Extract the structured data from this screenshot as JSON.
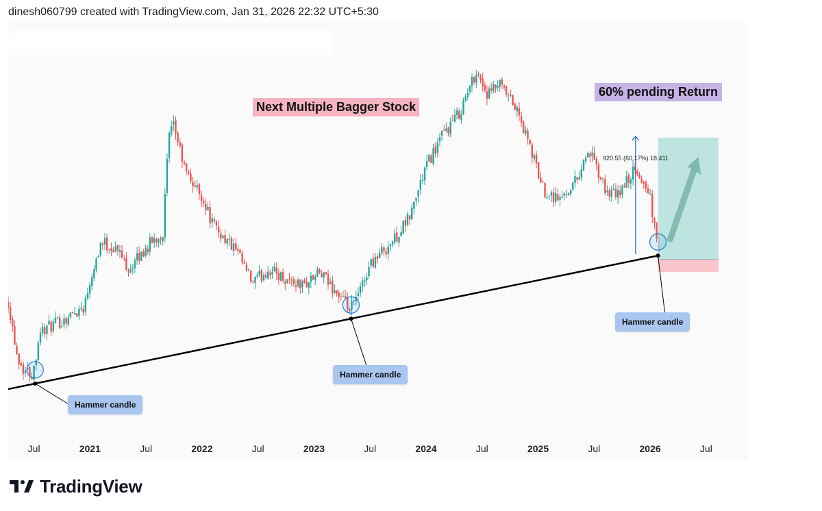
{
  "header": {
    "text": "dinesh060799 created with TradingView.com, Jan 31, 2026 22:32 UTC+5:30"
  },
  "annotations": {
    "title": "Next Multiple Bagger Stock",
    "return_label": "60% pending Return",
    "measure": "920.55 (60.17%) 18,411",
    "hammer_labels": [
      "Hammer candle",
      "Hammer candle",
      "Hammer candle"
    ]
  },
  "footer": {
    "brand": "TradingView"
  },
  "colors": {
    "up": "#26a69a",
    "down": "#ef5350",
    "target_zone": "#b2dfdb",
    "stop_zone": "#f8c0c6",
    "trendline": "#000000",
    "arrow": "#1e64c8"
  },
  "chart_data": {
    "type": "candlestick",
    "title": "",
    "x_axis_labels": [
      "Jul",
      "2021",
      "Jul",
      "2022",
      "Jul",
      "2023",
      "Jul",
      "2024",
      "Jul",
      "2025",
      "Jul",
      "2026",
      "Jul"
    ],
    "x_axis_bold": [
      false,
      true,
      false,
      true,
      false,
      true,
      false,
      true,
      false,
      true,
      false,
      true,
      false
    ],
    "x_range": [
      2020.27,
      2026.99
    ],
    "y_scale": "log",
    "y_price_range_approx": [
      420,
      2750
    ],
    "price_path_keypoints": [
      [
        2020.27,
        800
      ],
      [
        2020.35,
        600
      ],
      [
        2020.4,
        560
      ],
      [
        2020.49,
        540
      ],
      [
        2020.55,
        680
      ],
      [
        2020.75,
        720
      ],
      [
        2020.95,
        780
      ],
      [
        2021.0,
        900
      ],
      [
        2021.1,
        1100
      ],
      [
        2021.25,
        1050
      ],
      [
        2021.35,
        950
      ],
      [
        2021.55,
        1100
      ],
      [
        2021.65,
        1150
      ],
      [
        2021.7,
        1900
      ],
      [
        2021.75,
        2050
      ],
      [
        2021.85,
        1600
      ],
      [
        2022.0,
        1400
      ],
      [
        2022.1,
        1200
      ],
      [
        2022.3,
        1050
      ],
      [
        2022.45,
        880
      ],
      [
        2022.6,
        950
      ],
      [
        2022.75,
        900
      ],
      [
        2022.9,
        870
      ],
      [
        2023.05,
        930
      ],
      [
        2023.2,
        840
      ],
      [
        2023.32,
        760
      ],
      [
        2023.4,
        830
      ],
      [
        2023.5,
        980
      ],
      [
        2023.7,
        1100
      ],
      [
        2023.85,
        1250
      ],
      [
        2024.0,
        1650
      ],
      [
        2024.15,
        1950
      ],
      [
        2024.3,
        2200
      ],
      [
        2024.45,
        2750
      ],
      [
        2024.55,
        2400
      ],
      [
        2024.65,
        2550
      ],
      [
        2024.8,
        2250
      ],
      [
        2024.92,
        1850
      ],
      [
        2025.05,
        1450
      ],
      [
        2025.2,
        1380
      ],
      [
        2025.35,
        1550
      ],
      [
        2025.45,
        1800
      ],
      [
        2025.6,
        1450
      ],
      [
        2025.7,
        1400
      ],
      [
        2025.85,
        1600
      ],
      [
        2025.95,
        1500
      ],
      [
        2026.0,
        1400
      ],
      [
        2026.08,
        1000
      ]
    ],
    "trendline": [
      [
        2020.27,
        500
      ],
      [
        2026.06,
        1020
      ]
    ],
    "hammer_candles_x": [
      2020.51,
      2023.33,
      2026.07
    ],
    "position": {
      "entry_approx": 1000,
      "target_approx": 1920,
      "stop_approx": 935,
      "x_start": 2026.07,
      "x_end": 2026.61
    }
  }
}
